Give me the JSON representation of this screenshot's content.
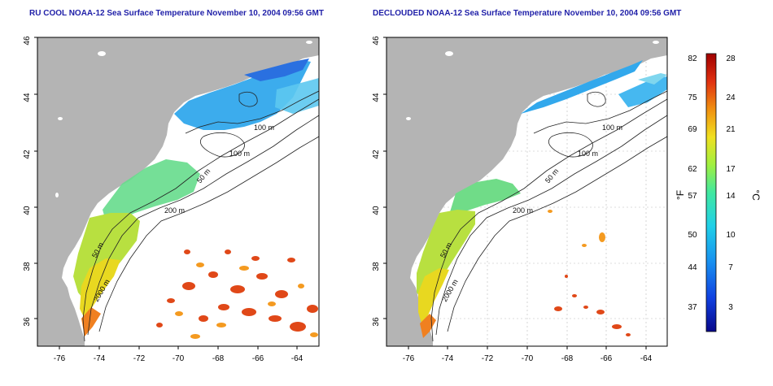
{
  "panels": [
    {
      "title": "RU COOL NOAA-12 Sea Surface Temperature November 10, 2004 09:56 GMT",
      "contour_labels": [
        "100 m",
        "100 m",
        "50 m",
        "200 m",
        "50 m",
        "2000 m"
      ]
    },
    {
      "title": "DECLOUDED NOAA-12 Sea Surface Temperature November 10, 2004 09:56 GMT",
      "contour_labels": [
        "100 m",
        "100 m",
        "50 m",
        "200 m",
        "50 m",
        "2000 m"
      ]
    }
  ],
  "axes": {
    "x_ticks": [
      "-76",
      "-74",
      "-72",
      "-70",
      "-68",
      "-66",
      "-64"
    ],
    "y_ticks": [
      "46",
      "44",
      "42",
      "40",
      "38",
      "36"
    ]
  },
  "colorbar": {
    "fahrenheit_label": "°F",
    "celsius_label": "°C",
    "fahrenheit_ticks": [
      "82",
      "75",
      "69",
      "62",
      "57",
      "50",
      "44",
      "37"
    ],
    "celsius_ticks": [
      "28",
      "24",
      "21",
      "17",
      "14",
      "10",
      "7",
      "3"
    ],
    "colors": [
      "#08088a",
      "#1040e0",
      "#1890f0",
      "#20d0e8",
      "#40e8a0",
      "#a0f040",
      "#f0e020",
      "#f09010",
      "#e03010",
      "#a00000"
    ]
  }
}
